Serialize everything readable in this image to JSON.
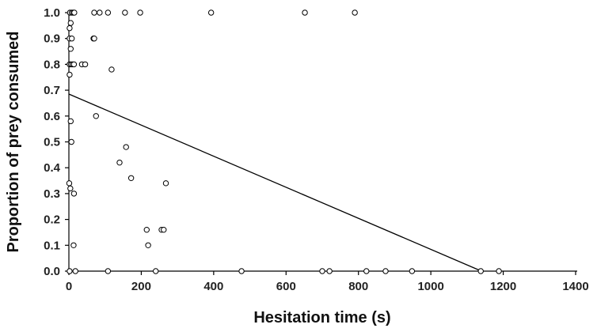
{
  "chart_data": {
    "type": "scatter",
    "title": "",
    "xlabel": "Hesitation time (s)",
    "ylabel": "Proportion of prey consumed",
    "xlim": [
      0,
      1400
    ],
    "ylim": [
      0,
      1.0
    ],
    "x_ticks": [
      "0",
      "200",
      "400",
      "600",
      "800",
      "1000",
      "1200",
      "1400"
    ],
    "y_ticks": [
      "0.0",
      "0.1",
      "0.2",
      "0.3",
      "0.4",
      "0.5",
      "0.6",
      "0.7",
      "0.8",
      "0.9",
      "1.0"
    ],
    "grid": false,
    "legend": "none",
    "series": [
      {
        "points": [
          [
            3,
            1.0
          ],
          [
            8,
            1.0
          ],
          [
            12,
            1.0
          ],
          [
            15,
            1.0
          ],
          [
            70,
            1.0
          ],
          [
            85,
            1.0
          ],
          [
            108,
            1.0
          ],
          [
            155,
            1.0
          ],
          [
            197,
            1.0
          ],
          [
            393,
            1.0
          ],
          [
            652,
            1.0
          ],
          [
            790,
            1.0
          ],
          [
            2,
            0.94
          ],
          [
            5,
            0.96
          ],
          [
            2,
            0.9
          ],
          [
            8,
            0.9
          ],
          [
            68,
            0.9
          ],
          [
            70,
            0.9
          ],
          [
            5,
            0.86
          ],
          [
            2,
            0.8
          ],
          [
            6,
            0.8
          ],
          [
            10,
            0.8
          ],
          [
            14,
            0.8
          ],
          [
            36,
            0.8
          ],
          [
            45,
            0.8
          ],
          [
            118,
            0.78
          ],
          [
            2,
            0.76
          ],
          [
            75,
            0.6
          ],
          [
            5,
            0.58
          ],
          [
            7,
            0.5
          ],
          [
            158,
            0.48
          ],
          [
            140,
            0.42
          ],
          [
            172,
            0.36
          ],
          [
            268,
            0.34
          ],
          [
            1,
            0.34
          ],
          [
            4,
            0.32
          ],
          [
            14,
            0.3
          ],
          [
            215,
            0.16
          ],
          [
            256,
            0.16
          ],
          [
            262,
            0.16
          ],
          [
            219,
            0.1
          ],
          [
            13,
            0.1
          ],
          [
            2,
            0.0
          ],
          [
            18,
            0.0
          ],
          [
            108,
            0.0
          ],
          [
            240,
            0.0
          ],
          [
            477,
            0.0
          ],
          [
            700,
            0.0
          ],
          [
            720,
            0.0
          ],
          [
            822,
            0.0
          ],
          [
            875,
            0.0
          ],
          [
            948,
            0.0
          ],
          [
            1138,
            0.0
          ],
          [
            1188,
            0.0
          ]
        ]
      }
    ],
    "trendline": {
      "x": [
        0,
        1140
      ],
      "y": [
        0.685,
        0.0
      ]
    }
  }
}
